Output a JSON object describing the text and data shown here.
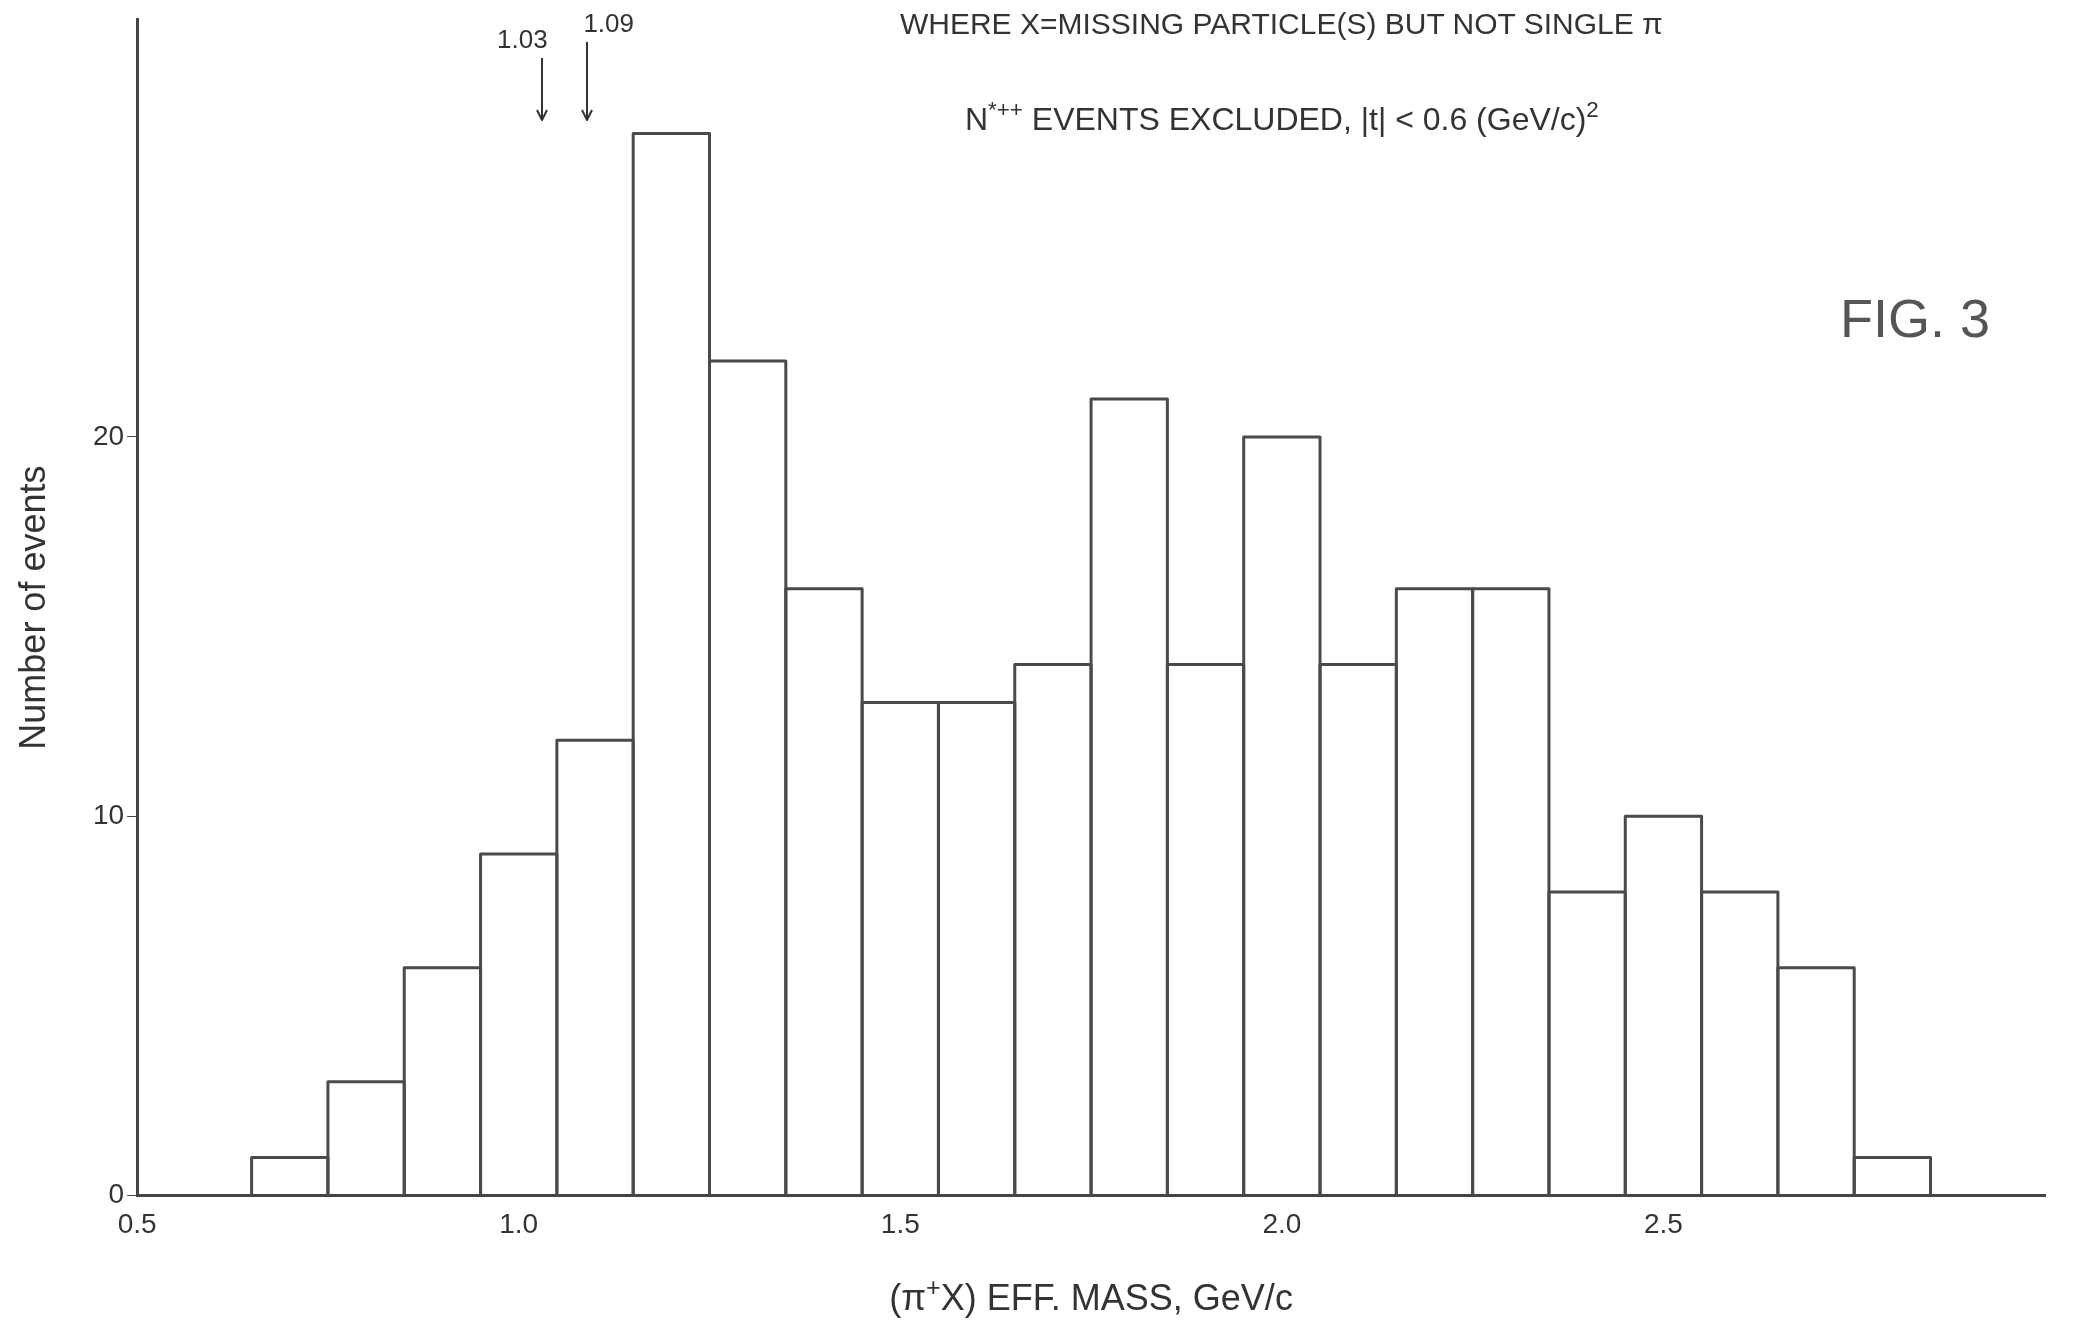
{
  "chart_data": {
    "type": "histogram",
    "title": "WHERE X=MISSING PARTICLE(S) BUT NOT SINGLE π",
    "subtitle": "N$^{*++}$ EVENTS EXCLUDED, |t| < 0.6 (GeV/c)$^{2}$",
    "xlabel": "(π$^{+}$X) EFF. MASS, GeV/c",
    "ylabel": "Number of events",
    "bins": [
      0.65,
      0.75,
      0.85,
      0.95,
      1.05,
      1.15,
      1.25,
      1.35,
      1.45,
      1.55,
      1.65,
      1.75,
      1.85,
      1.95,
      2.05,
      2.15,
      2.25,
      2.35,
      2.45,
      2.55,
      2.65,
      2.75,
      2.85
    ],
    "values": [
      1,
      3,
      6,
      9,
      12,
      28,
      22,
      16,
      13,
      13,
      14,
      21,
      14,
      20,
      14,
      16,
      16,
      8,
      10,
      8,
      6,
      1
    ],
    "color": "#4a4a4a",
    "xlim": [
      0.5,
      3.0
    ],
    "xticks": [
      0.5,
      {
        "value": 1,
        "label": "1.0"
      },
      1.5,
      {
        "value": 2,
        "label": "2.0"
      },
      2.5
    ],
    "ylim": [
      0,
      31
    ],
    "yticks": [
      0,
      10,
      20
    ],
    "grid": false,
    "legend": false,
    "ref_lines": [
      {
        "axis": "x",
        "value": 1.03,
        "label": "1.03"
      },
      {
        "axis": "x",
        "value": 1.09,
        "label": "1.09"
      }
    ],
    "annotations": [
      "FIG. 3"
    ]
  }
}
